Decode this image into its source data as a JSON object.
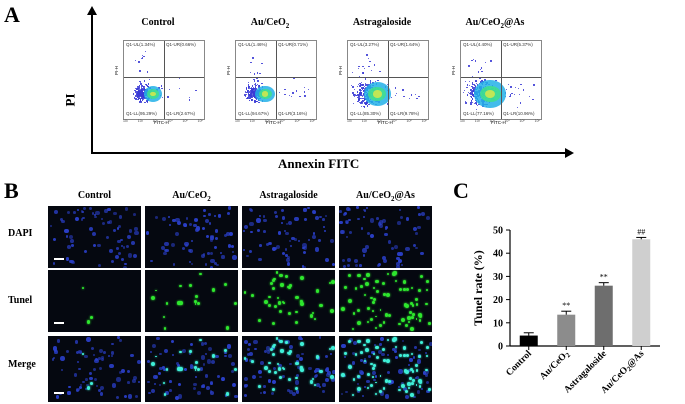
{
  "panelA": {
    "letter": "A",
    "y_label": "PI",
    "x_label": "Annexin FITC",
    "plots": [
      {
        "title": "Control",
        "ul": "Q1-UL(1.34%)",
        "ur": "Q1-UR(0.66%)",
        "ll": "Q1-LL(95.29%)",
        "lr": "Q1-LR(2.67%)",
        "y_axis": "PI-H",
        "x_axis": "FITC-H"
      },
      {
        "title_main": "Au/CeO",
        "title_sub": "2",
        "ul": "Q1-UL(1.46%)",
        "ur": "Q1-UR(0.71%)",
        "ll": "Q1-LL(94.67%)",
        "lr": "Q1-LR(3.16%)",
        "y_axis": "PI-H",
        "x_axis": "FITC-H"
      },
      {
        "title": "Astragaloside",
        "ul": "Q1-UL(3.27%)",
        "ur": "Q1-UR(1.64%)",
        "ll": "Q1-LL(85.30%)",
        "lr": "Q1-LR(9.78%)",
        "y_axis": "PI-H",
        "x_axis": "FITC-H"
      },
      {
        "title_main": "Au/CeO",
        "title_sub": "2",
        "title_tail": "@As",
        "ul": "Q1-UL(4.40%)",
        "ur": "Q1-UR(5.37%)",
        "ll": "Q1-LL(77.16%)",
        "lr": "Q1-LR(10.96%)",
        "y_axis": "PI-H",
        "x_axis": "FITC-H"
      }
    ],
    "tick_labels": [
      "10¹",
      "10²",
      "10³",
      "10⁴",
      "10⁵",
      "10⁶"
    ]
  },
  "panelB": {
    "letter": "B",
    "columns": [
      {
        "main": "Control",
        "sub": "",
        "tail": ""
      },
      {
        "main": "Au/CeO",
        "sub": "2",
        "tail": ""
      },
      {
        "main": "Astragaloside",
        "sub": "",
        "tail": ""
      },
      {
        "main": "Au/CeO",
        "sub": "2",
        "tail": "@As"
      }
    ],
    "rows": [
      "DAPI",
      "Tunel",
      "Merge"
    ]
  },
  "panelC": {
    "letter": "C"
  },
  "chart_data": {
    "type": "bar",
    "categories": [
      "Control",
      "Au/CeO2",
      "Astragaloside",
      "Au/CeO2@As"
    ],
    "category_labels": [
      {
        "main": "Control",
        "sub": "",
        "tail": ""
      },
      {
        "main": "Au/CeO",
        "sub": "2",
        "tail": ""
      },
      {
        "main": "Astragaloside",
        "sub": "",
        "tail": ""
      },
      {
        "main": "Au/CeO",
        "sub": "2",
        "tail": "@As"
      }
    ],
    "values": [
      4.5,
      13.5,
      26.0,
      46.0
    ],
    "errors": [
      1.2,
      1.5,
      1.3,
      0.8
    ],
    "annotations": [
      "",
      "**",
      "**",
      "##"
    ],
    "bar_colors": [
      "#000000",
      "#8c8c8c",
      "#6e6e6e",
      "#cfcfcf"
    ],
    "ylabel": "Tunel rate (%)",
    "ylim": [
      0,
      50
    ],
    "yticks": [
      0,
      10,
      20,
      30,
      40,
      50
    ]
  }
}
